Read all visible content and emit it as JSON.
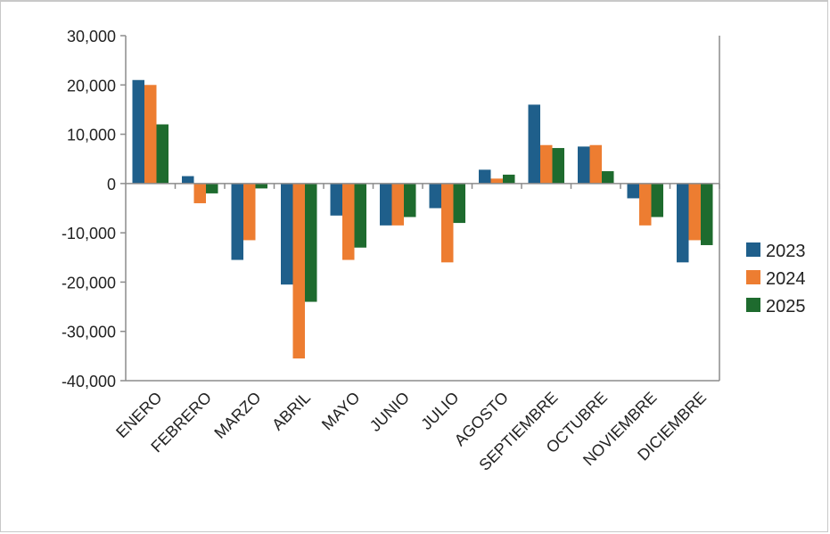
{
  "chart_data": {
    "type": "bar",
    "categories": [
      "ENERO",
      "FEBRERO",
      "MARZO",
      "ABRIL",
      "MAYO",
      "JUNIO",
      "JULIO",
      "AGOSTO",
      "SEPTIEMBRE",
      "OCTUBRE",
      "NOVIEMBRE",
      "DICIEMBRE"
    ],
    "series": [
      {
        "name": "2023",
        "color": "#1f5f8b",
        "values": [
          21000,
          1500,
          -15500,
          -20500,
          -6500,
          -8500,
          -5000,
          2800,
          16000,
          7500,
          -3000,
          -16000
        ]
      },
      {
        "name": "2024",
        "color": "#ed7d31",
        "values": [
          20000,
          -4000,
          -11500,
          -35500,
          -15500,
          -8500,
          -16000,
          1000,
          7800,
          7800,
          -8500,
          -11500
        ]
      },
      {
        "name": "2025",
        "color": "#1e6b2e",
        "values": [
          12000,
          -2000,
          -1000,
          -24000,
          -13000,
          -6800,
          -8000,
          1800,
          7200,
          2500,
          -6800,
          -12500
        ]
      }
    ],
    "ylim": [
      -40000,
      30000
    ],
    "yticks": [
      30000,
      20000,
      10000,
      0,
      -10000,
      -20000,
      -30000,
      -40000
    ],
    "ytick_labels": [
      "30,000",
      "20,000",
      "10,000",
      "0",
      "-10,000",
      "-20,000",
      "-30,000",
      "-40,000"
    ],
    "legend_position": "right",
    "grid": false,
    "xlabel": "",
    "ylabel": ""
  }
}
